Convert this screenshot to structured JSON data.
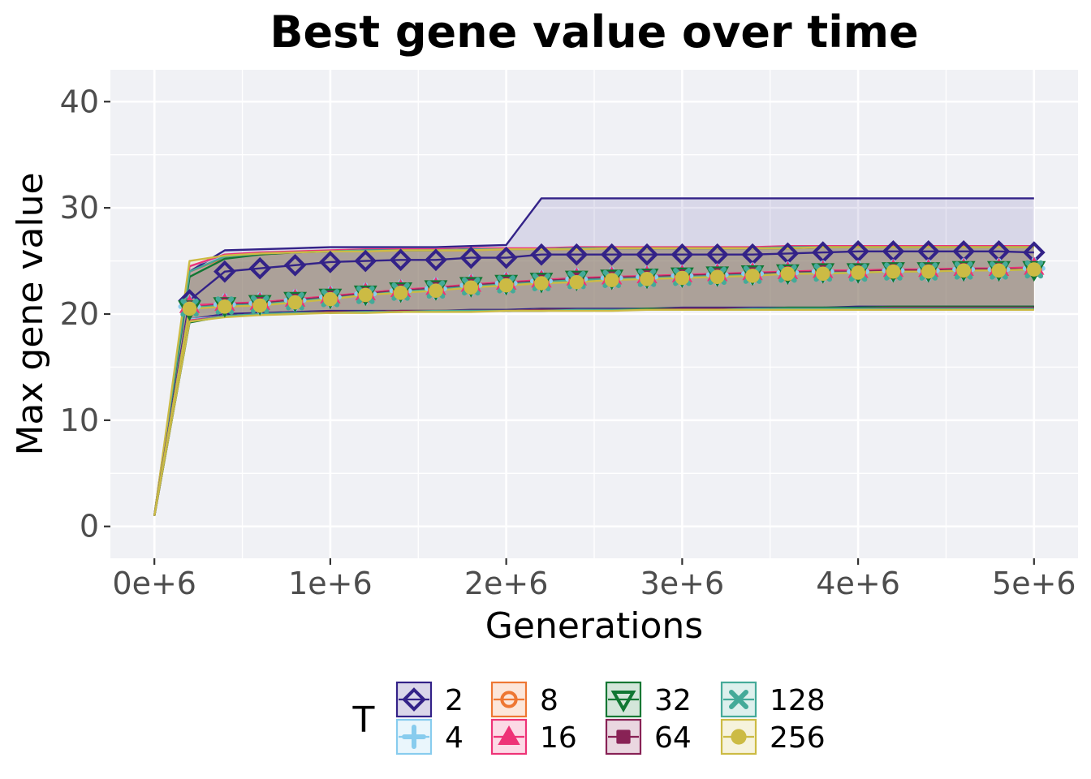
{
  "chart_data": {
    "type": "line",
    "title": "Best gene value over time",
    "xlabel": "Generations",
    "ylabel": "Max gene value",
    "xlim": [
      -250000,
      5250000
    ],
    "ylim": [
      -3,
      43
    ],
    "xticks": [
      0,
      1000000,
      2000000,
      3000000,
      4000000,
      5000000
    ],
    "xtick_labels": [
      "0e+6",
      "1e+6",
      "2e+6",
      "3e+6",
      "4e+6",
      "5e+6"
    ],
    "yticks": [
      0,
      10,
      20,
      30,
      40
    ],
    "ytick_labels": [
      "0",
      "10",
      "20",
      "30",
      "40"
    ],
    "grid": true,
    "legend": {
      "title": "T",
      "position": "bottom"
    },
    "x": [
      0,
      200000,
      400000,
      600000,
      800000,
      1000000,
      1200000,
      1400000,
      1600000,
      1800000,
      2000000,
      2200000,
      2400000,
      2600000,
      2800000,
      3000000,
      3200000,
      3400000,
      3600000,
      3800000,
      4000000,
      4200000,
      4400000,
      4600000,
      4800000,
      5000000
    ],
    "series": [
      {
        "name": "2",
        "color": "#332288",
        "marker": "diamond",
        "values": [
          1,
          21.3,
          24.0,
          24.3,
          24.6,
          24.9,
          25.0,
          25.1,
          25.1,
          25.3,
          25.3,
          25.6,
          25.6,
          25.6,
          25.6,
          25.6,
          25.6,
          25.6,
          25.7,
          25.8,
          25.9,
          25.9,
          25.9,
          25.9,
          25.9,
          25.8
        ],
        "upper": [
          1,
          24.0,
          26.0,
          26.1,
          26.2,
          26.3,
          26.3,
          26.3,
          26.3,
          26.4,
          26.5,
          30.9,
          30.9,
          30.9,
          30.9,
          30.9,
          30.9,
          30.9,
          30.9,
          30.9,
          30.9,
          30.9,
          30.9,
          30.9,
          30.9,
          30.9
        ],
        "lower": [
          1,
          19.5,
          20.0,
          20.1,
          20.2,
          20.3,
          20.3,
          20.3,
          20.3,
          20.4,
          20.4,
          20.5,
          20.5,
          20.5,
          20.5,
          20.6,
          20.6,
          20.6,
          20.6,
          20.6,
          20.7,
          20.7,
          20.7,
          20.7,
          20.7,
          20.7
        ]
      },
      {
        "name": "4",
        "color": "#88ccee",
        "marker": "plus",
        "values": [
          1,
          20.7,
          20.9,
          21.0,
          21.3,
          21.6,
          21.9,
          22.2,
          22.4,
          22.7,
          22.9,
          23.1,
          23.3,
          23.4,
          23.5,
          23.6,
          23.7,
          23.8,
          23.9,
          24.0,
          24.0,
          24.1,
          24.1,
          24.2,
          24.2,
          24.3
        ],
        "upper": [
          1,
          24.5,
          25.5,
          25.7,
          25.8,
          25.9,
          26.0,
          26.0,
          26.0,
          26.1,
          26.1,
          26.1,
          26.2,
          26.2,
          26.2,
          26.2,
          26.2,
          26.2,
          26.3,
          26.3,
          26.3,
          26.3,
          26.3,
          26.3,
          26.3,
          26.3
        ],
        "lower": [
          1,
          19.5,
          19.8,
          20.0,
          20.1,
          20.2,
          20.2,
          20.3,
          20.3,
          20.3,
          20.3,
          20.4,
          20.4,
          20.4,
          20.4,
          20.5,
          20.5,
          20.5,
          20.5,
          20.5,
          20.5,
          20.5,
          20.5,
          20.5,
          20.5,
          20.5
        ]
      },
      {
        "name": "8",
        "color": "#ee7733",
        "marker": "circle-open",
        "values": [
          1,
          20.6,
          20.8,
          20.9,
          21.2,
          21.5,
          21.8,
          22.1,
          22.3,
          22.6,
          22.8,
          23.0,
          23.2,
          23.3,
          23.4,
          23.5,
          23.6,
          23.7,
          23.8,
          23.9,
          24.0,
          24.0,
          24.1,
          24.1,
          24.2,
          24.2
        ],
        "upper": [
          1,
          24.0,
          25.3,
          25.6,
          25.8,
          25.9,
          25.9,
          26.0,
          26.0,
          26.0,
          26.1,
          26.1,
          26.1,
          26.2,
          26.2,
          26.2,
          26.2,
          26.2,
          26.2,
          26.3,
          26.3,
          26.3,
          26.3,
          26.3,
          26.3,
          26.3
        ],
        "lower": [
          1,
          19.4,
          19.8,
          20.0,
          20.1,
          20.1,
          20.2,
          20.2,
          20.3,
          20.3,
          20.3,
          20.3,
          20.4,
          20.4,
          20.4,
          20.4,
          20.4,
          20.5,
          20.5,
          20.5,
          20.5,
          20.5,
          20.5,
          20.5,
          20.5,
          20.5
        ]
      },
      {
        "name": "16",
        "color": "#ee3377",
        "marker": "triangle-up",
        "values": [
          1,
          20.8,
          21.0,
          21.1,
          21.4,
          21.7,
          22.0,
          22.3,
          22.5,
          22.8,
          23.0,
          23.2,
          23.4,
          23.5,
          23.6,
          23.7,
          23.8,
          23.9,
          24.0,
          24.1,
          24.1,
          24.2,
          24.2,
          24.3,
          24.3,
          24.4
        ],
        "upper": [
          1,
          24.5,
          25.6,
          25.8,
          25.9,
          26.0,
          26.1,
          26.1,
          26.1,
          26.2,
          26.2,
          26.2,
          26.3,
          26.3,
          26.3,
          26.3,
          26.3,
          26.3,
          26.4,
          26.4,
          26.4,
          26.4,
          26.4,
          26.4,
          26.4,
          26.4
        ],
        "lower": [
          1,
          19.4,
          19.8,
          20.0,
          20.1,
          20.2,
          20.2,
          20.3,
          20.3,
          20.3,
          20.3,
          20.4,
          20.4,
          20.4,
          20.4,
          20.5,
          20.5,
          20.5,
          20.5,
          20.5,
          20.5,
          20.6,
          20.6,
          20.6,
          20.6,
          20.6
        ]
      },
      {
        "name": "32",
        "color": "#117733",
        "marker": "triangle-down",
        "values": [
          1,
          20.5,
          20.8,
          21.0,
          21.3,
          21.6,
          21.9,
          22.2,
          22.4,
          22.7,
          22.9,
          23.1,
          23.3,
          23.4,
          23.5,
          23.6,
          23.7,
          23.8,
          23.9,
          24.0,
          24.0,
          24.1,
          24.1,
          24.2,
          24.2,
          24.2
        ],
        "upper": [
          1,
          23.5,
          25.2,
          25.6,
          25.8,
          25.9,
          26.0,
          26.0,
          26.0,
          26.1,
          26.1,
          26.1,
          26.2,
          26.2,
          26.2,
          26.2,
          26.2,
          26.2,
          26.2,
          26.3,
          26.3,
          26.3,
          26.3,
          26.3,
          26.3,
          26.3
        ],
        "lower": [
          1,
          19.2,
          19.8,
          20.0,
          20.1,
          20.2,
          20.2,
          20.3,
          20.3,
          20.3,
          20.3,
          20.4,
          20.4,
          20.4,
          20.5,
          20.5,
          20.5,
          20.5,
          20.6,
          20.6,
          20.6,
          20.7,
          20.7,
          20.7,
          20.7,
          20.7
        ]
      },
      {
        "name": "64",
        "color": "#882255",
        "marker": "square",
        "values": [
          1,
          20.6,
          20.9,
          21.0,
          21.3,
          21.6,
          21.9,
          22.2,
          22.4,
          22.7,
          22.9,
          23.1,
          23.3,
          23.4,
          23.5,
          23.6,
          23.7,
          23.8,
          23.9,
          24.0,
          24.0,
          24.1,
          24.1,
          24.2,
          24.2,
          24.2
        ],
        "upper": [
          1,
          24.0,
          25.4,
          25.7,
          25.8,
          25.9,
          26.0,
          26.0,
          26.0,
          26.1,
          26.1,
          26.1,
          26.2,
          26.2,
          26.2,
          26.2,
          26.2,
          26.2,
          26.3,
          26.3,
          26.3,
          26.3,
          26.3,
          26.3,
          26.3,
          26.3
        ],
        "lower": [
          1,
          19.3,
          19.8,
          20.0,
          20.1,
          20.2,
          20.2,
          20.3,
          20.3,
          20.3,
          20.3,
          20.4,
          20.4,
          20.4,
          20.4,
          20.5,
          20.5,
          20.5,
          20.5,
          20.5,
          20.5,
          20.6,
          20.6,
          20.6,
          20.6,
          20.6
        ]
      },
      {
        "name": "128",
        "color": "#44aa99",
        "marker": "cross",
        "values": [
          1,
          20.6,
          20.8,
          20.9,
          21.2,
          21.5,
          21.8,
          22.1,
          22.3,
          22.6,
          22.8,
          23.0,
          23.2,
          23.3,
          23.4,
          23.5,
          23.6,
          23.7,
          23.8,
          23.9,
          23.9,
          24.0,
          24.0,
          24.1,
          24.1,
          24.2
        ],
        "upper": [
          1,
          24.0,
          25.4,
          25.7,
          25.8,
          25.9,
          26.0,
          26.0,
          26.0,
          26.1,
          26.1,
          26.1,
          26.2,
          26.2,
          26.2,
          26.2,
          26.2,
          26.2,
          26.3,
          26.3,
          26.3,
          26.3,
          26.3,
          26.3,
          26.3,
          26.3
        ],
        "lower": [
          1,
          19.3,
          19.8,
          20.0,
          20.1,
          20.1,
          20.2,
          20.2,
          20.3,
          20.3,
          20.3,
          20.3,
          20.4,
          20.4,
          20.4,
          20.4,
          20.4,
          20.5,
          20.5,
          20.5,
          20.5,
          20.5,
          20.5,
          20.5,
          20.5,
          20.5
        ]
      },
      {
        "name": "256",
        "color": "#ccbb44",
        "marker": "circle",
        "values": [
          1,
          20.5,
          20.7,
          20.8,
          21.1,
          21.4,
          21.8,
          22.0,
          22.2,
          22.5,
          22.7,
          22.9,
          23.0,
          23.2,
          23.3,
          23.4,
          23.5,
          23.6,
          23.8,
          23.8,
          23.9,
          24.0,
          24.0,
          24.1,
          24.1,
          24.2
        ],
        "upper": [
          1,
          25.0,
          25.5,
          25.7,
          25.8,
          25.9,
          25.9,
          26.0,
          26.0,
          26.0,
          26.1,
          26.1,
          26.1,
          26.2,
          26.2,
          26.2,
          26.2,
          26.2,
          26.2,
          26.3,
          26.3,
          26.3,
          26.3,
          26.3,
          26.3,
          26.3
        ],
        "lower": [
          1,
          19.3,
          19.7,
          19.9,
          20.0,
          20.1,
          20.1,
          20.2,
          20.2,
          20.2,
          20.3,
          20.3,
          20.3,
          20.3,
          20.4,
          20.4,
          20.4,
          20.4,
          20.4,
          20.4,
          20.4,
          20.4,
          20.4,
          20.4,
          20.4,
          20.4
        ]
      }
    ]
  }
}
